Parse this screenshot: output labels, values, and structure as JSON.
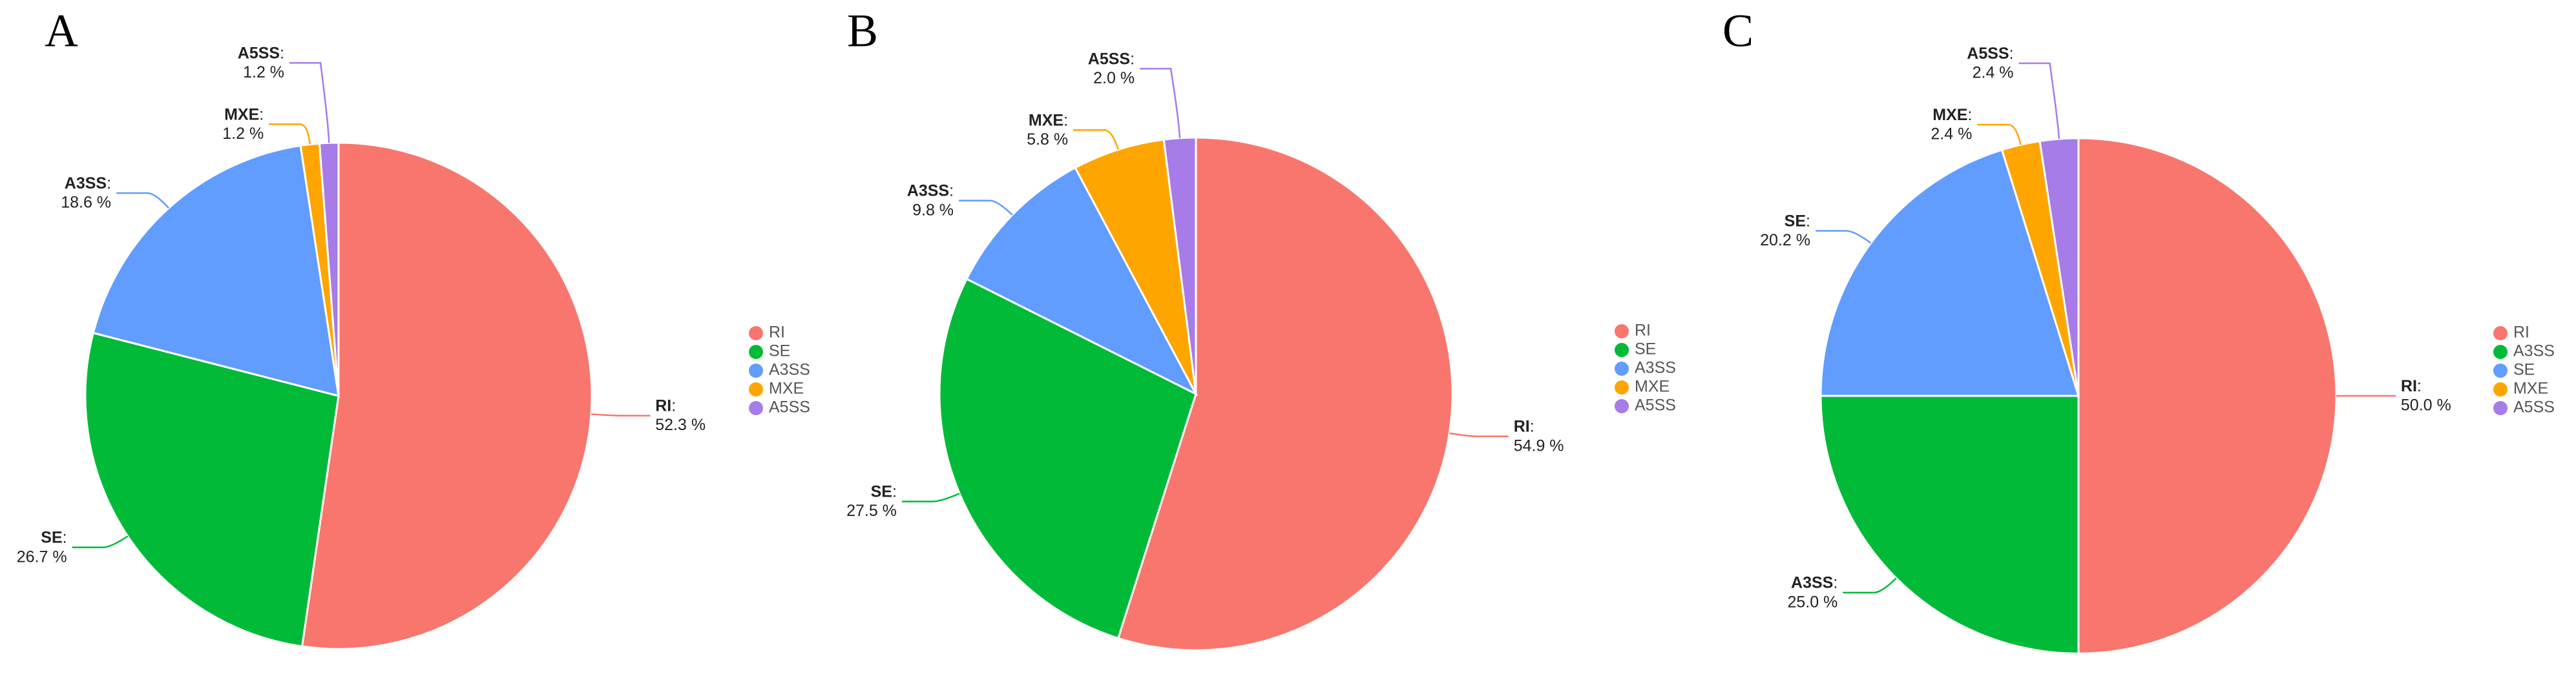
{
  "chart_data": [
    {
      "type": "pie",
      "title": "A",
      "categories": [
        "RI",
        "SE",
        "A3SS",
        "MXE",
        "A5SS"
      ],
      "values": [
        52.3,
        26.7,
        18.6,
        1.2,
        1.2
      ],
      "value_labels": [
        "52.3 %",
        "26.7 %",
        "18.6 %",
        "1.2 %",
        "1.2 %"
      ],
      "label_separator": ":",
      "colors": [
        "#F8766D",
        "#00BA38",
        "#619CFF",
        "#FFA500",
        "#A77BE8"
      ],
      "legend": "right"
    },
    {
      "type": "pie",
      "title": "B",
      "categories": [
        "RI",
        "SE",
        "A3SS",
        "MXE",
        "A5SS"
      ],
      "values": [
        54.9,
        27.5,
        9.8,
        5.8,
        2.0
      ],
      "value_labels": [
        "54.9 %",
        "27.5 %",
        "9.8 %",
        "5.8 %",
        "2.0 %"
      ],
      "label_separator": ":",
      "colors": [
        "#F8766D",
        "#00BA38",
        "#619CFF",
        "#FFA500",
        "#A77BE8"
      ],
      "legend": "right"
    },
    {
      "type": "pie",
      "title": "C",
      "categories": [
        "RI",
        "A3SS",
        "SE",
        "MXE",
        "A5SS"
      ],
      "values": [
        50.0,
        25.0,
        20.2,
        2.4,
        2.4
      ],
      "value_labels": [
        "50.0 %",
        "25.0 %",
        "20.2 %",
        "2.4 %",
        "2.4 %"
      ],
      "label_separator": ":",
      "colors": [
        "#F8766D",
        "#00BA38",
        "#619CFF",
        "#FFA500",
        "#A77BE8"
      ],
      "legend": "right"
    }
  ]
}
